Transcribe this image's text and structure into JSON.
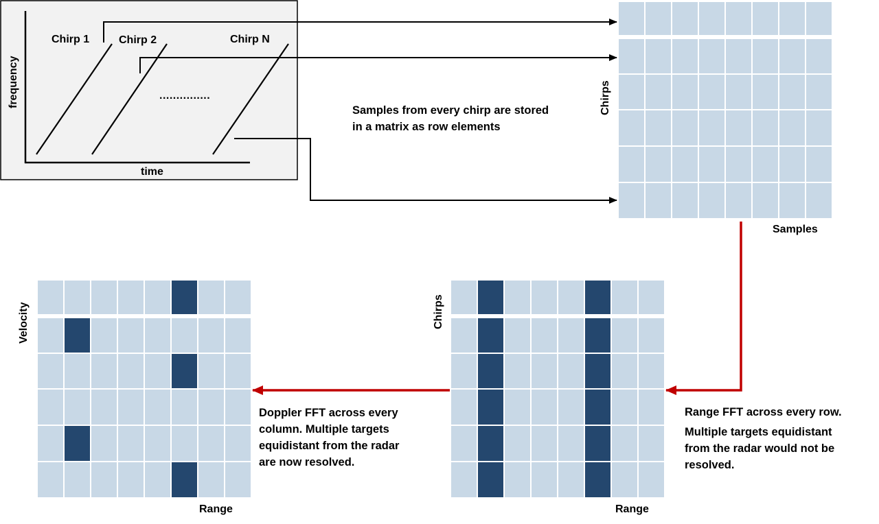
{
  "colors": {
    "cell": "#c8d8e6",
    "target": "#24476e",
    "frame_bg": "#f2f2f2",
    "arrow_black": "#000000",
    "arrow_red": "#c00000"
  },
  "chirp_panel": {
    "y_axis_label": "frequency",
    "x_axis_label": "time",
    "chirp_labels": [
      "Chirp 1",
      "Chirp 2",
      "Chirp N"
    ],
    "ellipsis": "..............."
  },
  "raw_matrix": {
    "y_label": "Chirps",
    "x_label": "Samples",
    "rows": 6,
    "cols": 8,
    "description": "Samples from every chirp are stored\nin a matrix as row elements"
  },
  "range_fft_matrix": {
    "y_label": "Chirps",
    "x_label": "Range",
    "rows": 6,
    "cols": 8,
    "target_columns": [
      1,
      5
    ],
    "description_title": "Range FFT across every row.",
    "description_body": "Multiple targets equidistant\nfrom the radar would not be\nresolved."
  },
  "doppler_fft_matrix": {
    "y_label": "Velocity",
    "x_label": "Range",
    "rows": 6,
    "cols": 8,
    "target_cells": [
      [
        0,
        5
      ],
      [
        1,
        1
      ],
      [
        2,
        5
      ],
      [
        4,
        1
      ],
      [
        5,
        5
      ]
    ],
    "description": "Doppler FFT across every\ncolumn. Multiple targets\nequidistant from the radar\nare now resolved."
  }
}
